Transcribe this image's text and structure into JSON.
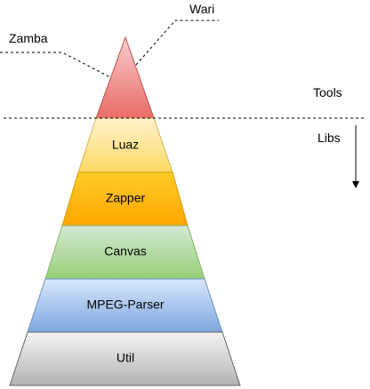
{
  "callouts": {
    "left_label": "Zamba",
    "right_label": "Wari"
  },
  "side_labels": {
    "above_line": "Tools",
    "below_line": "Libs"
  },
  "layers": [
    {
      "label": "Luaz",
      "color_top": "#fff2cc",
      "color_bottom": "#ffd966",
      "stroke": "#d6b656"
    },
    {
      "label": "Zapper",
      "color_top": "#ffcd28",
      "color_bottom": "#ffa500",
      "stroke": "#d79b00"
    },
    {
      "label": "Canvas",
      "color_top": "#d5e8d4",
      "color_bottom": "#97d077",
      "stroke": "#82b366"
    },
    {
      "label": "MPEG-Parser",
      "color_top": "#dae8fc",
      "color_bottom": "#7ea6e0",
      "stroke": "#6c8ebf"
    },
    {
      "label": "Util",
      "color_top": "#f5f5f5",
      "color_bottom": "#b3b3b3",
      "stroke": "#666666"
    }
  ],
  "apex": {
    "color_top": "#f8cecc",
    "color_bottom": "#ea6b66",
    "stroke": "#b85450"
  }
}
